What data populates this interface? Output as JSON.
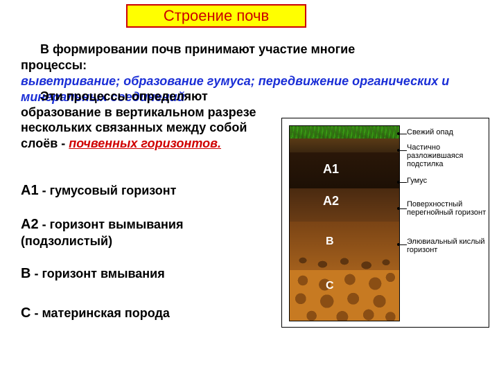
{
  "title": "Строение   почв",
  "p1_a": "В  формировании почв принимают  участие  многие",
  "p1_b": "процессы:",
  "p2": "выветривание; образование гумуса; передвижение органических и минеральных  соединений",
  "p3_a": "Эти процессы определяют",
  "p3_b": "образование  в вертикальном разрезе нескольких связанных между собой  слоёв -  ",
  "p3_red": "почвенных горизонтов.",
  "defs": {
    "a1_lab": "А1",
    "a1_txt": " -  гумусовый  горизонт",
    "a2_lab": "А2",
    "a2_txt": " - горизонт  вымывания  (подзолистый)",
    "b_lab": "В",
    "b_txt": "  -  горизонт  вмывания",
    "c_lab": "С",
    "c_txt": "  -  материнская порода"
  },
  "diagram": {
    "col_labels": {
      "a1": "А1",
      "a2": "А2",
      "b": "В",
      "c": "С"
    },
    "callouts": {
      "c1": "Свежий опад",
      "c2": "Частично разложившаяся подстилка",
      "c3": "Гумус",
      "c4": "Поверхностный перегнойный горизонт",
      "c5": "Элювиальный кислый горизонт"
    },
    "colors": {
      "title_bg": "#ffff00",
      "title_border": "#cc0000",
      "title_text": "#cc0000",
      "blue_text": "#1a2ed6",
      "red_text": "#d00000",
      "grass": "#3c7d1a",
      "litter": "#5a3a16",
      "a1": "#2a1708",
      "a2": "#4a2a10",
      "b": "#7a4415",
      "c": "#c77a22",
      "rock": "#8a4e14",
      "label_white": "#ffffff"
    }
  }
}
